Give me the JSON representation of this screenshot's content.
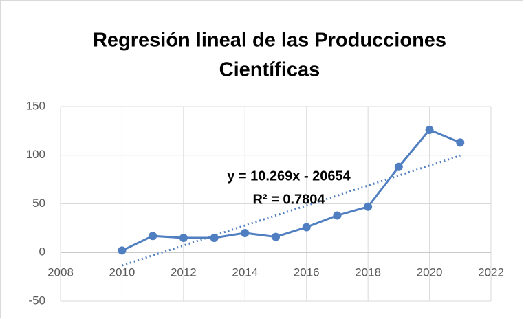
{
  "chart_data": {
    "type": "scatter-line",
    "title": [
      "Regresión lineal de las Producciones",
      "Científicas"
    ],
    "x": [
      2010,
      2011,
      2012,
      2013,
      2014,
      2015,
      2016,
      2017,
      2018,
      2019,
      2020,
      2021
    ],
    "series": [
      {
        "color": "#4f7ec1",
        "values": [
          2,
          17,
          15,
          15,
          20,
          16,
          26,
          38,
          47,
          88,
          126,
          113
        ]
      }
    ],
    "trendline": {
      "color": "#4f7ec1",
      "x": [
        2010,
        2021
      ],
      "values": [
        -13.3,
        99.6
      ]
    },
    "annotations": [
      "y = 10.269x - 20654",
      "R² = 0.7804"
    ],
    "xlim": [
      2008,
      2022
    ],
    "xticks": [
      2008,
      2010,
      2012,
      2014,
      2016,
      2018,
      2020,
      2022
    ],
    "ylim": [
      -50,
      150
    ],
    "yticks": [
      -50,
      0,
      50,
      100,
      150
    ],
    "grid": true
  }
}
